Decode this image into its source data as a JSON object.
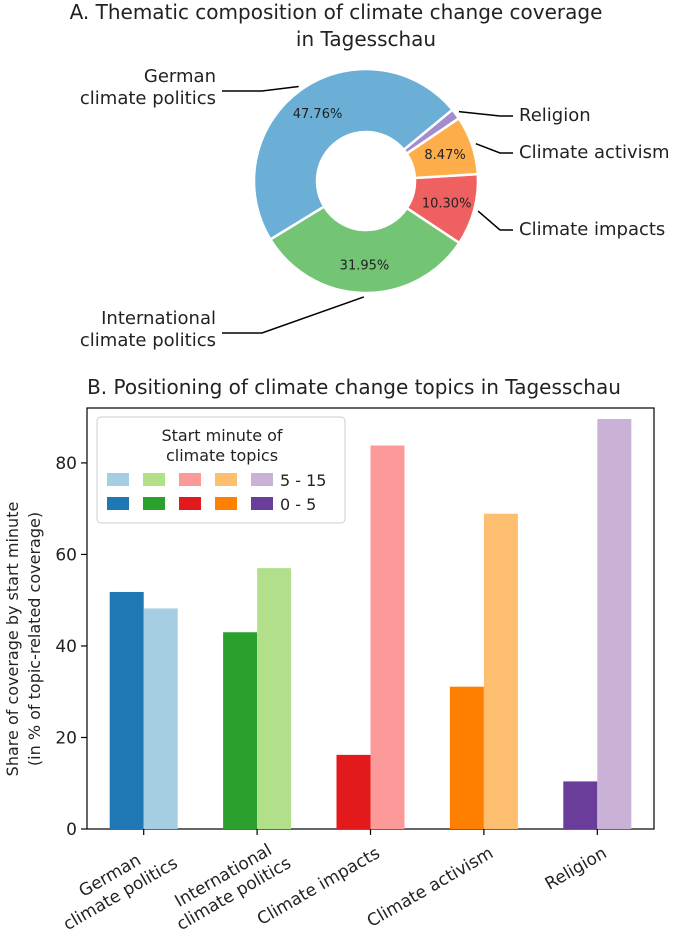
{
  "chart_data": [
    {
      "type": "pie",
      "title": "A. Thematic composition of climate change coverage in Tagesschau",
      "title_lines": [
        "A. Thematic composition of climate change coverage",
        "in Tagesschau"
      ],
      "donut": true,
      "slices": [
        {
          "label": "German climate politics",
          "label_lines": [
            "German",
            "climate politics"
          ],
          "value": 47.76,
          "pct_text": "47.76%",
          "color": "#6baed6"
        },
        {
          "label": "International climate politics",
          "label_lines": [
            "International",
            "climate politics"
          ],
          "value": 31.95,
          "pct_text": "31.95%",
          "color": "#74c476"
        },
        {
          "label": "Climate impacts",
          "label_lines": [
            "Climate impacts"
          ],
          "value": 10.3,
          "pct_text": "10.30%",
          "color": "#ef6161"
        },
        {
          "label": "Climate activism",
          "label_lines": [
            "Climate activism"
          ],
          "value": 8.47,
          "pct_text": "8.47%",
          "color": "#fdae4b"
        },
        {
          "label": "Religion",
          "label_lines": [
            "Religion"
          ],
          "value": 1.52,
          "pct_text": "",
          "color": "#a48ccc"
        }
      ]
    },
    {
      "type": "bar",
      "title": "B. Positioning of climate change topics in Tagesschau",
      "ylabel_lines": [
        "Share of coverage by start minute",
        "(in % of topic-related coverage)"
      ],
      "ylim": [
        0,
        92
      ],
      "yticks": [
        0,
        20,
        40,
        60,
        80
      ],
      "categories": [
        {
          "label": "German climate politics",
          "label_lines": [
            "German",
            "climate politics"
          ]
        },
        {
          "label": "International climate politics",
          "label_lines": [
            "International",
            "climate politics"
          ]
        },
        {
          "label": "Climate impacts",
          "label_lines": [
            "Climate impacts"
          ]
        },
        {
          "label": "Climate activism",
          "label_lines": [
            "Climate activism"
          ]
        },
        {
          "label": "Religion",
          "label_lines": [
            "Religion"
          ]
        }
      ],
      "series": [
        {
          "name": "0 - 5",
          "values": [
            51.8,
            43.0,
            16.2,
            31.1,
            10.4
          ],
          "colors": [
            "#1f77b4",
            "#2ca02c",
            "#e31a1c",
            "#ff7f00",
            "#6a3d9a"
          ]
        },
        {
          "name": "5 - 15",
          "values": [
            48.2,
            57.0,
            83.8,
            68.9,
            89.6
          ],
          "colors": [
            "#a6cee3",
            "#b2df8a",
            "#fb9a99",
            "#fdbf6f",
            "#cab2d6"
          ]
        }
      ],
      "legend": {
        "title_lines": [
          "Start minute of",
          "climate topics"
        ],
        "placement": "top-left"
      },
      "grid": false
    }
  ]
}
